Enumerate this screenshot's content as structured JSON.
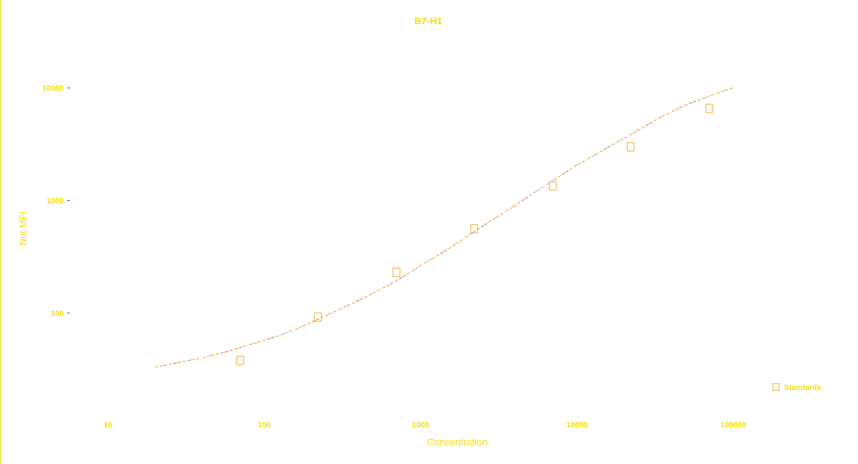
{
  "chart_data": {
    "type": "scatter",
    "title": "B7-H1",
    "xlabel": "Concentration",
    "ylabel": "Net MFI",
    "x_scale": "log",
    "y_scale": "log",
    "xlim": [
      5,
      200000
    ],
    "ylim": [
      15,
      15000
    ],
    "x_ticks": [
      "10",
      "100",
      "1000",
      "10000",
      "100000"
    ],
    "y_ticks": [
      "100",
      "1000",
      "10000"
    ],
    "grid": false,
    "legend_position": "bottom-right",
    "legend": [
      "Standards"
    ],
    "series": [
      {
        "name": "Standards",
        "marker": "hollow-square",
        "color": "#f5a623",
        "x": [
          70,
          220,
          700,
          2200,
          7000,
          22000,
          70000
        ],
        "y": [
          38,
          92,
          230,
          560,
          1350,
          3000,
          6600
        ]
      },
      {
        "fit": true,
        "color": "#f7b23b",
        "x": [
          20,
          40,
          60,
          90,
          120,
          160,
          220,
          300,
          450,
          700,
          1000,
          1500,
          2200,
          3500,
          5000,
          7000,
          10000,
          15000,
          22000,
          35000,
          50000,
          70000,
          100000
        ],
        "y": [
          33,
          40,
          46,
          55,
          62,
          72,
          88,
          107,
          140,
          193,
          265,
          370,
          530,
          800,
          1110,
          1500,
          2070,
          2860,
          3850,
          5600,
          7100,
          8500,
          10050
        ]
      }
    ],
    "colors": {
      "text": "#f2df00",
      "marker": "#f5a623",
      "fit_line": "#f7b23b",
      "fit_overlay": "#3a3aff",
      "frame": "#e8e400"
    }
  }
}
